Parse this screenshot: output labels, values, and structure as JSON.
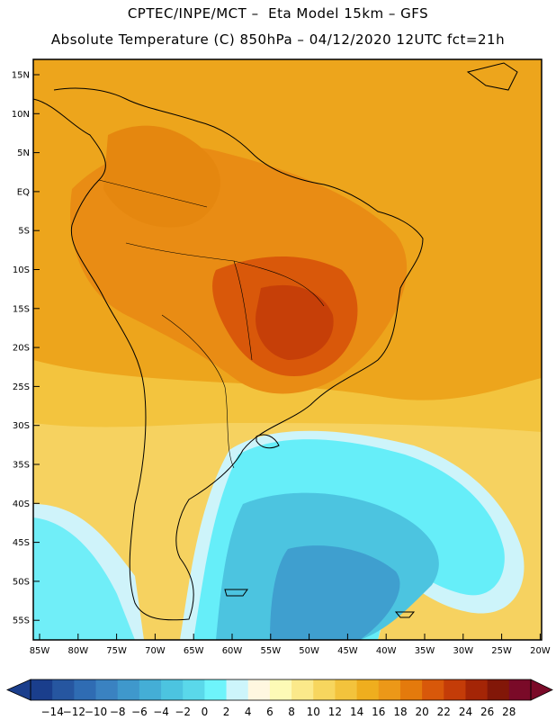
{
  "title": {
    "line1": "CPTEC/INPE/MCT –  Eta Model 15km – GFS",
    "line2": "Absolute Temperature (C) 850hPa – 04/12/2020 12UTC fct=21h"
  },
  "lat_labels": [
    "15N",
    "10N",
    "5N",
    "EQ",
    "5S",
    "10S",
    "15S",
    "20S",
    "25S",
    "30S",
    "35S",
    "40S",
    "45S",
    "50S",
    "55S"
  ],
  "lon_labels": [
    "85W",
    "80W",
    "75W",
    "70W",
    "65W",
    "60W",
    "55W",
    "50W",
    "45W",
    "40W",
    "35W",
    "30W",
    "25W",
    "20W"
  ],
  "colorbar": {
    "labels": [
      "-14",
      "-12",
      "-10",
      "-8",
      "-6",
      "-4",
      "-2",
      "0",
      "2",
      "4",
      "6",
      "8",
      "10",
      "12",
      "14",
      "16",
      "18",
      "20",
      "22",
      "24",
      "26",
      "28"
    ],
    "colors": [
      "#1a3e8c",
      "#2656a0",
      "#2f6cb3",
      "#3a82c1",
      "#3f98cc",
      "#44aed6",
      "#4cc4e0",
      "#5ad8ea",
      "#6ef4fb",
      "#cdf5fb",
      "#fff7e0",
      "#fdfab6",
      "#fbe98a",
      "#f7d65e",
      "#f3c33c",
      "#efae1e",
      "#ec9818",
      "#e47a0c",
      "#d8580a",
      "#c43c08",
      "#a42506",
      "#821708",
      "#7a0a28"
    ]
  }
}
